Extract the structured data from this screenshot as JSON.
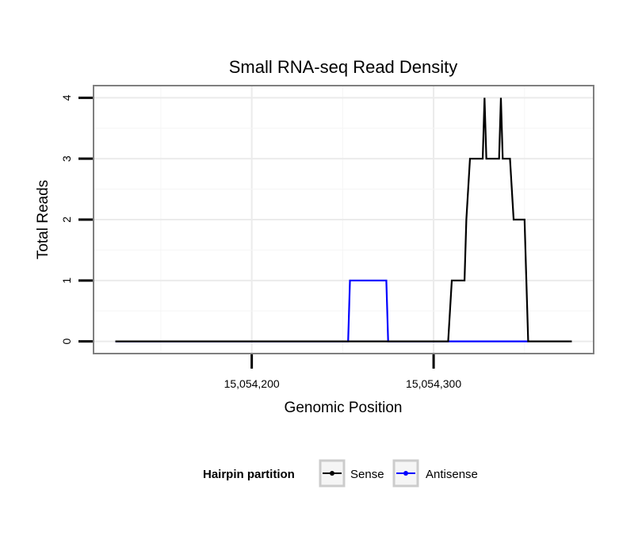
{
  "chart_data": {
    "type": "line",
    "title": "Small RNA-seq Read Density",
    "xlabel": "Genomic Position",
    "ylabel": "Total Reads",
    "xlim": [
      15054113,
      15054388
    ],
    "ylim": [
      -0.2,
      4.2
    ],
    "x_ticks": [
      {
        "value": 15054200,
        "label": "15,054,200"
      },
      {
        "value": 15054300,
        "label": "15,054,300"
      }
    ],
    "y_ticks": [
      {
        "value": 0,
        "label": "0"
      },
      {
        "value": 1,
        "label": "1"
      },
      {
        "value": 2,
        "label": "2"
      },
      {
        "value": 3,
        "label": "3"
      },
      {
        "value": 4,
        "label": "4"
      }
    ],
    "grid": true,
    "legend": {
      "title": "Hairpin partition",
      "position": "bottom",
      "entries": [
        "Sense",
        "Antisense"
      ]
    },
    "series": [
      {
        "name": "Sense",
        "color": "#000000",
        "x": [
          15054125,
          15054308,
          15054310,
          15054317,
          15054318,
          15054320,
          15054327,
          15054328,
          15054329,
          15054336,
          15054337,
          15054338,
          15054342,
          15054344,
          15054350,
          15054352,
          15054376
        ],
        "y": [
          0,
          0,
          1,
          1,
          2,
          3,
          3,
          4,
          3,
          3,
          4,
          3,
          3,
          2,
          2,
          0,
          0
        ]
      },
      {
        "name": "Antisense",
        "color": "#0000ff",
        "x": [
          15054125,
          15054253,
          15054254,
          15054274,
          15054275,
          15054352
        ],
        "y": [
          0,
          0,
          1,
          1,
          0,
          0
        ]
      }
    ]
  }
}
